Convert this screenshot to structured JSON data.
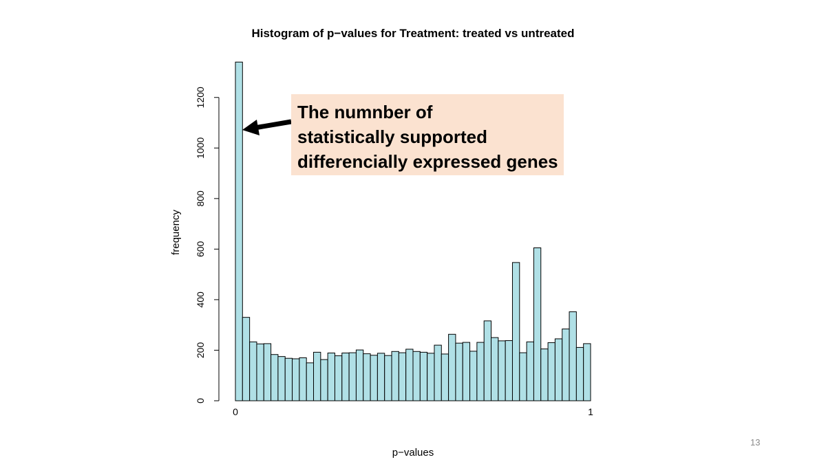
{
  "slide": {
    "page_number": "13",
    "annotation_lines": [
      "The numnber of",
      "statistically supported",
      "differencially expressed genes"
    ]
  },
  "colors": {
    "bar_fill": "#b0e0e6",
    "annotation_bg": "#fbe2d0"
  },
  "chart_data": {
    "type": "bar",
    "title": "Histogram of p−values for Treatment: treated vs untreated",
    "xlabel": "p−values",
    "ylabel": "frequency",
    "xlim": [
      0,
      1
    ],
    "ylim": [
      0,
      1340
    ],
    "x_ticks": [
      "0",
      "1"
    ],
    "y_ticks": [
      "0",
      "200",
      "400",
      "600",
      "800",
      "1000",
      "1200"
    ],
    "bin_width": 0.02,
    "values": [
      1340,
      330,
      233,
      225,
      226,
      183,
      175,
      168,
      166,
      170,
      150,
      192,
      163,
      189,
      178,
      189,
      190,
      201,
      186,
      180,
      188,
      179,
      195,
      190,
      204,
      195,
      192,
      188,
      220,
      185,
      263,
      228,
      231,
      196,
      231,
      316,
      250,
      237,
      238,
      547,
      190,
      233,
      605,
      205,
      230,
      245,
      284,
      352,
      211,
      226
    ]
  }
}
